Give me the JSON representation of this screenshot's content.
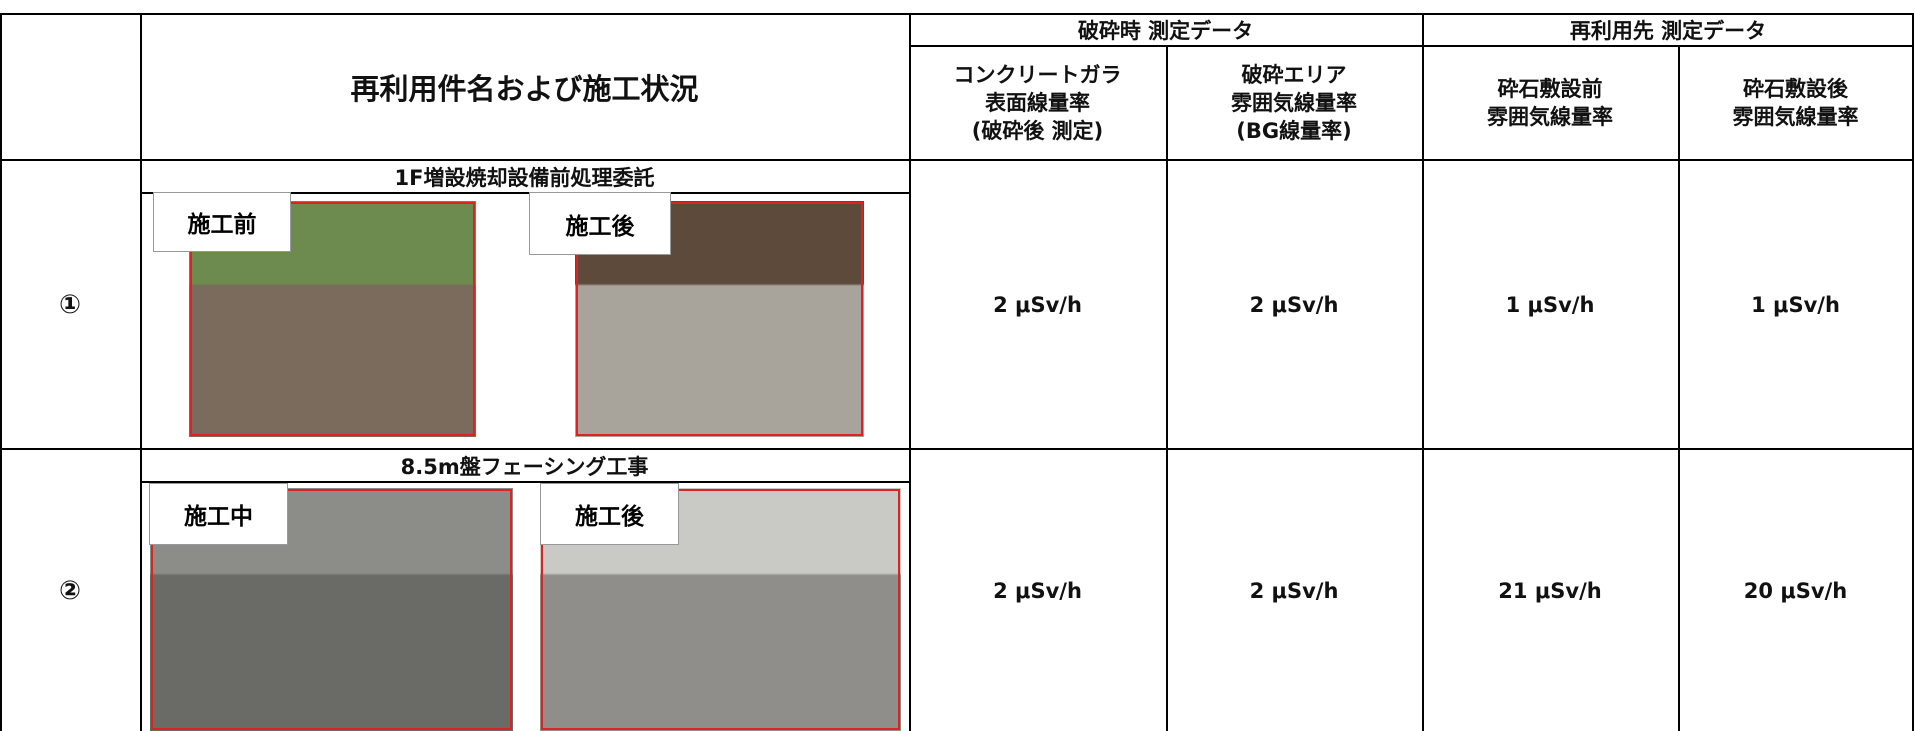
{
  "header": {
    "title": "再利用件名および施工状況",
    "groups": [
      "破砕時 測定データ",
      "再利用先 測定データ"
    ],
    "columns": [
      [
        "コンクリートガラ",
        "表面線量率",
        "(破砕後 測定)"
      ],
      [
        "破砕エリア",
        "雰囲気線量率",
        "(BG線量率)"
      ],
      [
        "砕石敷設前",
        "雰囲気線量率"
      ],
      [
        "砕石敷設後",
        "雰囲気線量率"
      ]
    ]
  },
  "rows": [
    {
      "marker": "①",
      "title": "1F増設焼却設備前処理委託",
      "photos": [
        "施工前",
        "施工後"
      ],
      "values": [
        "2 μSv/h",
        "2 μSv/h",
        "1 μSv/h",
        "1 μSv/h"
      ]
    },
    {
      "marker": "②",
      "title": "8.5m盤フェーシング工事",
      "photos": [
        "施工中",
        "施工後"
      ],
      "values": [
        "2 μSv/h",
        "2 μSv/h",
        "21 μSv/h",
        "20 μSv/h"
      ]
    }
  ]
}
